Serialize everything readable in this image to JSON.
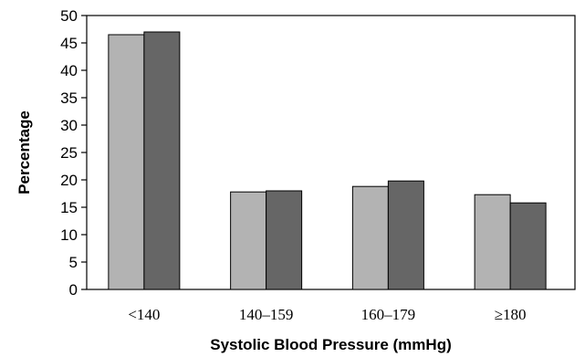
{
  "chart_data": {
    "type": "bar",
    "title": "",
    "xlabel": "Systolic Blood Pressure (mmHg)",
    "ylabel": "Percentage",
    "ylim": [
      0,
      50
    ],
    "yticks": [
      "0",
      "5",
      "10",
      "15",
      "20",
      "25",
      "30",
      "35",
      "40",
      "45",
      "50"
    ],
    "categories": [
      "<140",
      "140–159",
      "160–179",
      "≥180"
    ],
    "series": [
      {
        "values": [
          46.5,
          17.8,
          18.8,
          17.3
        ],
        "color": "#b3b3b3"
      },
      {
        "values": [
          47.0,
          18.0,
          19.8,
          15.8
        ],
        "color": "#666666"
      }
    ],
    "grid": false,
    "legend": "none"
  }
}
